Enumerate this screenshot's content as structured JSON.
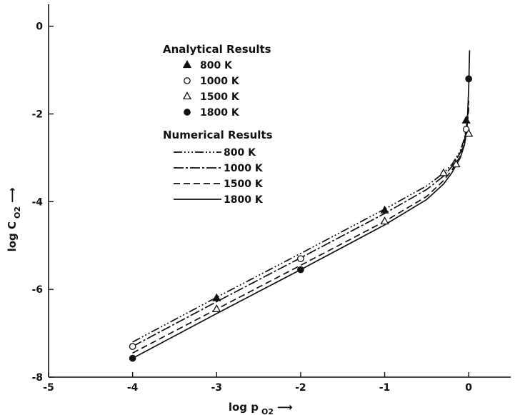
{
  "chart_data": {
    "type": "line",
    "xlabel": "log p",
    "xlabel_sub": "O2",
    "ylabel": "log C",
    "ylabel_sub": "O2",
    "xlim": [
      -5,
      0.5
    ],
    "ylim": [
      -8,
      0.5
    ],
    "xticks": [
      -5,
      -4,
      -3,
      -2,
      -1,
      0
    ],
    "yticks": [
      0,
      -2,
      -4,
      -6,
      -8
    ],
    "xtick_labels": [
      "-5",
      "-4",
      "-3",
      "-2",
      "-1",
      "0"
    ],
    "ytick_labels": [
      "0",
      "-2",
      "-4",
      "-6",
      "-8"
    ],
    "grid": false,
    "legend_placement": "upper-center",
    "legend": {
      "analytical_title": "Analytical Results",
      "numerical_title": "Numerical Results"
    },
    "numerical_series": [
      {
        "name": "800 K",
        "dash": "dash-dot-dot-dot",
        "x": [
          -4,
          -3,
          -2,
          -1,
          -0.5,
          -0.3,
          -0.2,
          -0.1,
          -0.05,
          -0.02,
          0.0
        ],
        "y": [
          -7.2,
          -6.18,
          -5.18,
          -4.17,
          -3.64,
          -3.35,
          -3.15,
          -2.84,
          -2.55,
          -2.2,
          -1.7
        ]
      },
      {
        "name": "1000 K",
        "dash": "dash-dot",
        "x": [
          -4,
          -3,
          -2,
          -1,
          -0.5,
          -0.3,
          -0.2,
          -0.1,
          -0.05,
          -0.02,
          0.0
        ],
        "y": [
          -7.3,
          -6.28,
          -5.28,
          -4.27,
          -3.72,
          -3.42,
          -3.2,
          -2.88,
          -2.6,
          -2.25,
          -1.85
        ]
      },
      {
        "name": "1500 K",
        "dash": "dashed",
        "x": [
          -4,
          -3,
          -2,
          -1,
          -0.5,
          -0.3,
          -0.2,
          -0.1,
          -0.05,
          -0.02,
          0.0
        ],
        "y": [
          -7.45,
          -6.45,
          -5.45,
          -4.45,
          -3.88,
          -3.52,
          -3.28,
          -2.96,
          -2.66,
          -2.3,
          -1.9
        ]
      },
      {
        "name": "1800 K",
        "dash": "solid",
        "x": [
          -4,
          -3,
          -2,
          -1,
          -0.5,
          -0.3,
          -0.2,
          -0.1,
          -0.05,
          -0.02,
          0.0,
          0.01
        ],
        "y": [
          -7.57,
          -6.55,
          -5.55,
          -4.53,
          -3.95,
          -3.6,
          -3.34,
          -3.0,
          -2.7,
          -2.35,
          -1.4,
          -0.55
        ]
      }
    ],
    "analytical_series": [
      {
        "name": "800 K",
        "marker": "filled-triangle",
        "x": [
          -3,
          -1,
          -0.03
        ],
        "y": [
          -6.2,
          -4.2,
          -2.15
        ]
      },
      {
        "name": "1000 K",
        "marker": "open-circle",
        "x": [
          -4,
          -2,
          -0.03
        ],
        "y": [
          -7.3,
          -5.3,
          -2.35
        ]
      },
      {
        "name": "1500 K",
        "marker": "open-triangle",
        "x": [
          -3,
          -1,
          -0.3,
          -0.15,
          0.0
        ],
        "y": [
          -6.45,
          -4.45,
          -3.35,
          -3.15,
          -2.45
        ]
      },
      {
        "name": "1800 K",
        "marker": "filled-circle",
        "x": [
          -4,
          -2,
          0.0
        ],
        "y": [
          -7.57,
          -5.55,
          -1.2
        ]
      }
    ]
  }
}
